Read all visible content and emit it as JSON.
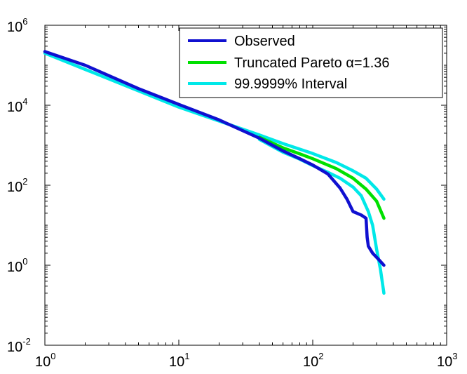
{
  "chart_data": {
    "type": "line",
    "title": "",
    "xlabel": "",
    "ylabel": "",
    "x_scale": "log",
    "y_scale": "log",
    "xlim": [
      1,
      1000
    ],
    "ylim": [
      0.01,
      1000000
    ],
    "grid": false,
    "legend_position": "top-right",
    "x_ticks": [
      {
        "base": "10",
        "exp": "0",
        "value": 1
      },
      {
        "base": "10",
        "exp": "1",
        "value": 10
      },
      {
        "base": "10",
        "exp": "2",
        "value": 100
      },
      {
        "base": "10",
        "exp": "3",
        "value": 1000
      }
    ],
    "y_ticks": [
      {
        "base": "10",
        "exp": "-2",
        "value": 0.01
      },
      {
        "base": "10",
        "exp": "0",
        "value": 1
      },
      {
        "base": "10",
        "exp": "2",
        "value": 100
      },
      {
        "base": "10",
        "exp": "4",
        "value": 10000
      },
      {
        "base": "10",
        "exp": "6",
        "value": 1000000
      }
    ],
    "series": [
      {
        "name": "Observed",
        "color": "#1010d0",
        "points": [
          [
            1,
            220000
          ],
          [
            2,
            100000
          ],
          [
            5,
            26000
          ],
          [
            10,
            10500
          ],
          [
            20,
            4300
          ],
          [
            40,
            1500
          ],
          [
            60,
            720
          ],
          [
            80,
            460
          ],
          [
            100,
            320
          ],
          [
            130,
            190
          ],
          [
            160,
            85
          ],
          [
            180,
            45
          ],
          [
            200,
            22
          ],
          [
            230,
            18
          ],
          [
            250,
            15
          ],
          [
            255,
            5
          ],
          [
            260,
            3
          ],
          [
            280,
            2
          ],
          [
            310,
            1.4
          ],
          [
            340,
            1
          ]
        ]
      },
      {
        "name": "Truncated Pareto α=1.36",
        "color": "#00e000",
        "points": [
          [
            40,
            1580
          ],
          [
            60,
            860
          ],
          [
            80,
            610
          ],
          [
            100,
            460
          ],
          [
            150,
            260
          ],
          [
            200,
            150
          ],
          [
            250,
            80
          ],
          [
            300,
            40
          ],
          [
            340,
            15
          ]
        ]
      },
      {
        "name": "99.9999% Interval",
        "color": "#00e8e8",
        "style": "upper",
        "points": [
          [
            1,
            200000
          ],
          [
            10,
            9000
          ],
          [
            40,
            1800
          ],
          [
            60,
            1100
          ],
          [
            100,
            620
          ],
          [
            150,
            370
          ],
          [
            200,
            230
          ],
          [
            250,
            150
          ],
          [
            300,
            80
          ],
          [
            340,
            45
          ]
        ]
      },
      {
        "name": "99.9999% Interval",
        "color": "#00e8e8",
        "style": "lower",
        "points": [
          [
            40,
            1400
          ],
          [
            60,
            670
          ],
          [
            80,
            450
          ],
          [
            100,
            310
          ],
          [
            130,
            210
          ],
          [
            160,
            150
          ],
          [
            200,
            90
          ],
          [
            230,
            55
          ],
          [
            260,
            22
          ],
          [
            280,
            10
          ],
          [
            300,
            2.5
          ],
          [
            320,
            0.8
          ],
          [
            340,
            0.2
          ]
        ]
      }
    ],
    "legend": [
      {
        "label": "Observed",
        "color": "#1010d0"
      },
      {
        "label_prefix": "Truncated Pareto ",
        "label_symbol": "α",
        "label_suffix": "=1.36",
        "color": "#00e000"
      },
      {
        "label": "99.9999% Interval",
        "color": "#00e8e8"
      }
    ]
  }
}
